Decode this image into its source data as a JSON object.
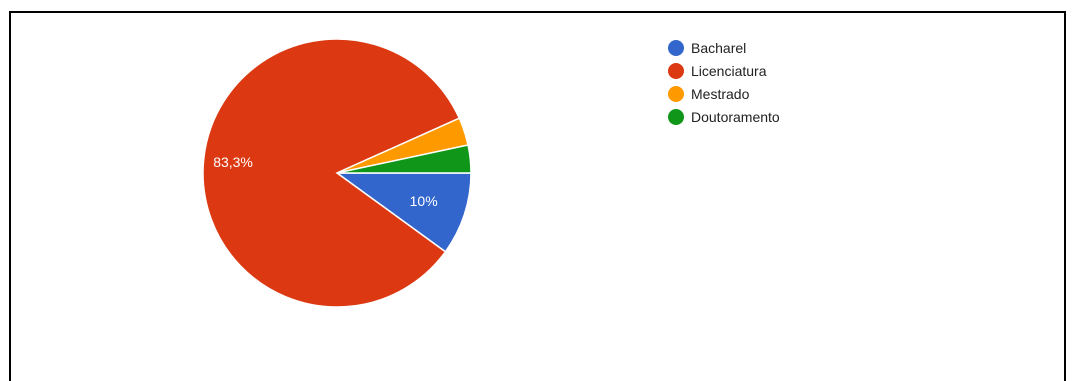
{
  "chart_data": {
    "type": "pie",
    "categories": [
      "Bacharel",
      "Licenciatura",
      "Mestrado",
      "Doutoramento"
    ],
    "values": [
      10,
      83.3,
      3.35,
      3.35
    ],
    "colors": [
      "#3366cc",
      "#dc3912",
      "#ff9900",
      "#109618"
    ],
    "data_labels": [
      "10%",
      "83,3%",
      "",
      ""
    ],
    "start_angle_deg": 90,
    "direction": "clockwise",
    "legend_position": "right"
  }
}
